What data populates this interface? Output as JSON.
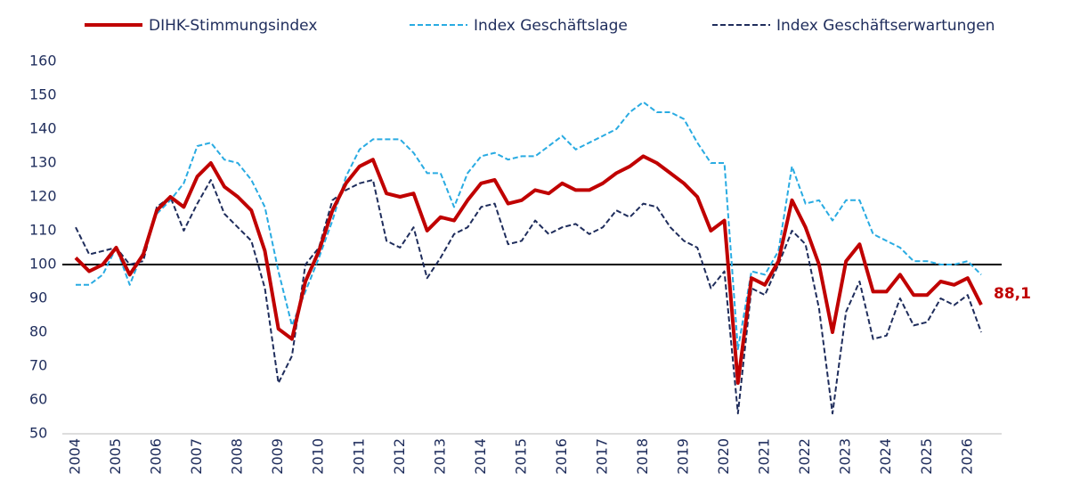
{
  "chart_data": {
    "type": "line",
    "categories": [
      "2004",
      null,
      null,
      "2005",
      null,
      null,
      "2006",
      null,
      null,
      "2007",
      null,
      null,
      "2008",
      null,
      null,
      "2009",
      null,
      null,
      "2010",
      null,
      null,
      "2011",
      null,
      null,
      "2012",
      null,
      null,
      "2013",
      null,
      null,
      "2014",
      null,
      null,
      "2015",
      null,
      null,
      "2016",
      null,
      null,
      "2017",
      null,
      null,
      "2018",
      null,
      null,
      "2019",
      null,
      null,
      "2020",
      null,
      null,
      "2021",
      null,
      null,
      "2022",
      null,
      null,
      "2023",
      null,
      null,
      "2024",
      null,
      null,
      "2025",
      null,
      null,
      "2026",
      null
    ],
    "series": [
      {
        "name": "DIHK-Stimmungsindex",
        "color": "#c00000",
        "dashed": false,
        "values": [
          102,
          98,
          100,
          105,
          97,
          103,
          116,
          120,
          117,
          126,
          130,
          123,
          120,
          116,
          104,
          81,
          78,
          95,
          104,
          116,
          124,
          129,
          131,
          121,
          120,
          121,
          110,
          114,
          113,
          119,
          124,
          125,
          118,
          119,
          122,
          121,
          124,
          122,
          122,
          124,
          127,
          129,
          132,
          130,
          127,
          124,
          120,
          110,
          113,
          65,
          96,
          94,
          101,
          119,
          111,
          100,
          80,
          101,
          106,
          92,
          92,
          97,
          91,
          91,
          95,
          94,
          96,
          88.1
        ],
        "end_label": "88,1"
      },
      {
        "name": "Index Geschäftslage",
        "color": "#29abe2",
        "dashed": true,
        "values": [
          94,
          94,
          97,
          105,
          94,
          104,
          115,
          119,
          124,
          135,
          136,
          131,
          130,
          125,
          117,
          98,
          82,
          92,
          102,
          113,
          126,
          134,
          137,
          137,
          137,
          133,
          127,
          127,
          117,
          127,
          132,
          133,
          131,
          132,
          132,
          135,
          138,
          134,
          136,
          138,
          140,
          145,
          148,
          145,
          145,
          143,
          136,
          130,
          130,
          75,
          98,
          97,
          104,
          129,
          118,
          119,
          113,
          119,
          119,
          109,
          107,
          105,
          101,
          101,
          100,
          100,
          101,
          97
        ]
      },
      {
        "name": "Index Geschäftserwartungen",
        "color": "#1f2d5c",
        "dashed": true,
        "values": [
          111,
          103,
          104,
          105,
          100,
          101,
          117,
          120,
          110,
          118,
          125,
          115,
          111,
          107,
          93,
          65,
          73,
          100,
          105,
          119,
          122,
          124,
          125,
          107,
          105,
          111,
          96,
          102,
          109,
          111,
          117,
          118,
          106,
          107,
          113,
          109,
          111,
          112,
          109,
          111,
          116,
          114,
          118,
          117,
          111,
          107,
          105,
          93,
          98,
          56,
          93,
          91,
          100,
          110,
          106,
          87,
          56,
          86,
          95,
          78,
          79,
          90,
          82,
          83,
          90,
          88,
          91,
          80
        ]
      }
    ],
    "ylim": [
      50,
      160
    ],
    "yticks": [
      50,
      60,
      70,
      80,
      90,
      100,
      110,
      120,
      130,
      140,
      150,
      160
    ],
    "reference_line": 100,
    "grid": false
  }
}
